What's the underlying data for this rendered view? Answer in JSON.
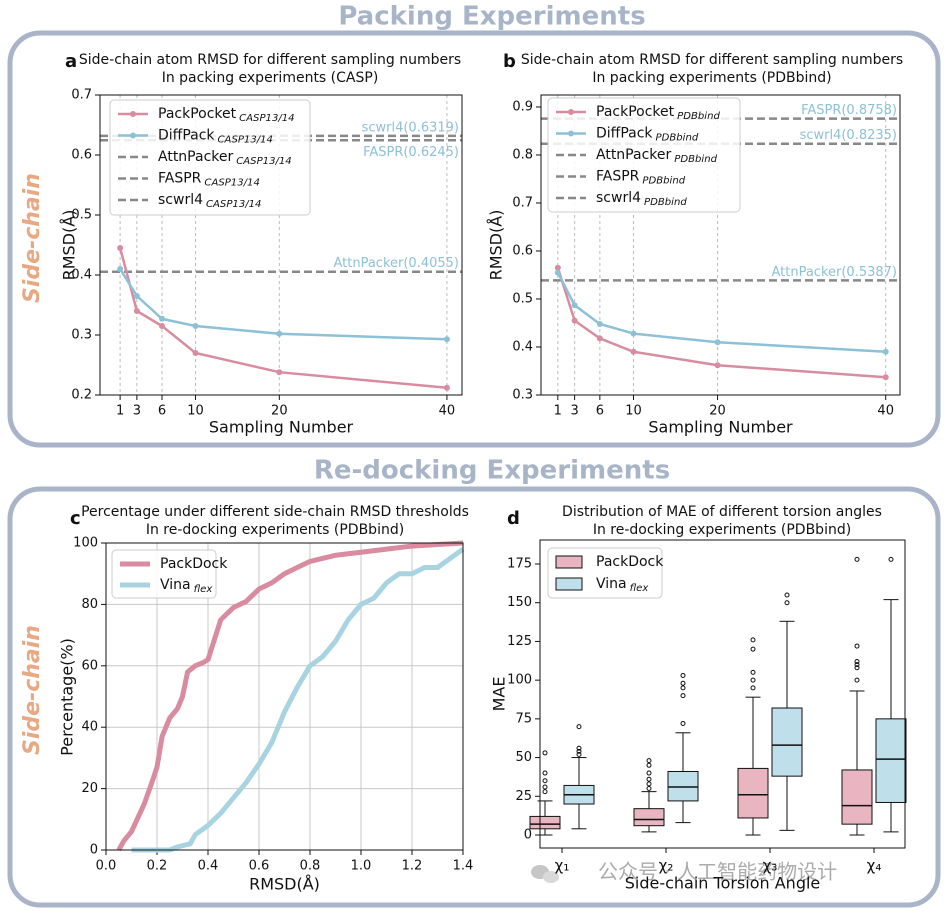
{
  "headers": [
    "Packing Experiments",
    "Re-docking Experiments"
  ],
  "side_labels": [
    "Side-chain",
    "Side-chain"
  ],
  "watermark": "公众号 · 人工智能药物设计",
  "chart_data": [
    {
      "panel": "a",
      "type": "line",
      "title": [
        "Side-chain atom RMSD for different sampling numbers",
        "In packing experiments (CASP)"
      ],
      "xlabel": "Sampling Number",
      "ylabel": "RMSD(Å)",
      "x": [
        1,
        3,
        6,
        10,
        20,
        40
      ],
      "xlim": [
        -1.4,
        41.8
      ],
      "xticks": [
        1,
        3,
        6,
        10,
        20,
        40
      ],
      "ylim": [
        0.2,
        0.7
      ],
      "yticks": [
        0.2,
        0.3,
        0.4,
        0.5,
        0.6,
        0.7
      ],
      "grid": "x",
      "series": [
        {
          "name": "PackPocket",
          "subscript": "CASP13/14",
          "color": "#d98ba0",
          "values": [
            0.445,
            0.34,
            0.315,
            0.27,
            0.238,
            0.212
          ]
        },
        {
          "name": "DiffPack",
          "subscript": "CASP13/14",
          "color": "#8cc1d6",
          "values": [
            0.41,
            0.365,
            0.327,
            0.315,
            0.302,
            0.293
          ]
        }
      ],
      "reference_lines": [
        {
          "name": "AttnPacker",
          "subscript": "CASP13/14",
          "value": 0.4055,
          "label": "AttnPacker(0.4055)",
          "color": "#888888"
        },
        {
          "name": "FASPR",
          "subscript": "CASP13/14",
          "value": 0.6245,
          "label": "FASPR(0.6245)",
          "color": "#888888"
        },
        {
          "name": "scwrl4",
          "subscript": "CASP13/14",
          "value": 0.6319,
          "label": "scwrl4(0.6319)",
          "color": "#888888"
        }
      ]
    },
    {
      "panel": "b",
      "type": "line",
      "title": [
        "Side-chain atom RMSD for different sampling numbers",
        "In packing experiments (PDBbind)"
      ],
      "xlabel": "Sampling Number",
      "ylabel": "RMSD(Å)",
      "x": [
        1,
        3,
        6,
        10,
        20,
        40
      ],
      "xlim": [
        -1.0,
        41.7
      ],
      "xticks": [
        1,
        3,
        6,
        10,
        20,
        40
      ],
      "ylim": [
        0.3,
        0.925
      ],
      "yticks": [
        0.3,
        0.4,
        0.5,
        0.6,
        0.7,
        0.8,
        0.9
      ],
      "grid": "x",
      "series": [
        {
          "name": "PackPocket",
          "subscript": "PDBbind",
          "color": "#d98ba0",
          "values": [
            0.565,
            0.455,
            0.418,
            0.39,
            0.362,
            0.337
          ]
        },
        {
          "name": "DiffPack",
          "subscript": "PDBbind",
          "color": "#8cc1d6",
          "values": [
            0.555,
            0.487,
            0.448,
            0.428,
            0.41,
            0.39
          ]
        }
      ],
      "reference_lines": [
        {
          "name": "AttnPacker",
          "subscript": "PDBbind",
          "value": 0.5387,
          "label": "AttnPacker(0.5387)",
          "color": "#888888"
        },
        {
          "name": "FASPR",
          "subscript": "PDBbind",
          "value": 0.8758,
          "label": "FASPR(0.8758)",
          "color": "#888888"
        },
        {
          "name": "scwrl4",
          "subscript": "PDBbind",
          "value": 0.8235,
          "label": "scwrl4(0.8235)",
          "color": "#888888"
        }
      ]
    },
    {
      "panel": "c",
      "type": "step",
      "title": [
        "Percentage under different side-chain RMSD thresholds",
        "In re-docking experiments (PDBbind)"
      ],
      "xlabel": "RMSD(Å)",
      "ylabel": "Percentage(%)",
      "xlim": [
        0,
        1.4
      ],
      "xticks": [
        {
          "value": 0,
          "label": "0.0"
        },
        0.2,
        0.4,
        0.6,
        0.8,
        {
          "value": 1,
          "label": "1.0"
        },
        1.2,
        1.4
      ],
      "ylim": [
        0,
        100
      ],
      "yticks": [
        0,
        20,
        40,
        60,
        80,
        100
      ],
      "grid": "both",
      "series": [
        {
          "name": "PackDock",
          "color": "#d98ba0",
          "x": [
            0.05,
            0.07,
            0.1,
            0.15,
            0.18,
            0.2,
            0.22,
            0.25,
            0.28,
            0.3,
            0.32,
            0.35,
            0.38,
            0.4,
            0.45,
            0.5,
            0.55,
            0.6,
            0.65,
            0.7,
            0.75,
            0.8,
            0.85,
            0.9,
            1.0,
            1.1,
            1.2,
            1.3,
            1.4
          ],
          "values": [
            0,
            3,
            6,
            15,
            22,
            27,
            37,
            43,
            46,
            50,
            58,
            60,
            61,
            62,
            75,
            79,
            81,
            85,
            87,
            90,
            92,
            94,
            95,
            96,
            97,
            98,
            99,
            99.5,
            100
          ]
        },
        {
          "name": "Vina",
          "subscript": "flex",
          "color": "#a8d3e0",
          "x": [
            0.1,
            0.25,
            0.28,
            0.33,
            0.35,
            0.4,
            0.45,
            0.5,
            0.55,
            0.6,
            0.65,
            0.7,
            0.75,
            0.8,
            0.85,
            0.9,
            0.95,
            1.0,
            1.05,
            1.1,
            1.15,
            1.2,
            1.25,
            1.3,
            1.35,
            1.4
          ],
          "values": [
            0,
            0,
            1,
            2,
            5,
            8,
            12,
            17,
            22,
            28,
            35,
            45,
            53,
            60,
            63,
            68,
            75,
            80,
            82,
            87,
            90,
            90,
            92,
            92,
            95,
            98
          ]
        }
      ]
    },
    {
      "panel": "d",
      "type": "box",
      "title": [
        "Distribution of MAE of different torsion angles",
        "In re-docking experiments (PDBbind)"
      ],
      "xlabel": "Side-chain Torsion Angle",
      "ylabel": "MAE",
      "categories": [
        "χ₁",
        "χ₂",
        "χ₃",
        "χ₄"
      ],
      "ylim": [
        -8.4,
        190.5
      ],
      "yticks": [
        0,
        25,
        50,
        75,
        100,
        125,
        150,
        175
      ],
      "series": [
        {
          "name": "PackDock",
          "color": "#e8b5c1",
          "boxes": [
            {
              "whislo": 0,
              "q1": 4,
              "med": 7,
              "q3": 12,
              "whishi": 22,
              "fliers": [
                28,
                31,
                35,
                40,
                53
              ]
            },
            {
              "whislo": 2,
              "q1": 6,
              "med": 10,
              "q3": 17,
              "whishi": 28,
              "fliers": [
                30,
                33,
                36,
                40,
                45,
                48
              ]
            },
            {
              "whislo": 0,
              "q1": 11,
              "med": 26,
              "q3": 43,
              "whishi": 89,
              "fliers": [
                95,
                100,
                105,
                120,
                126
              ]
            },
            {
              "whislo": 0,
              "q1": 7,
              "med": 19,
              "q3": 42,
              "whishi": 93,
              "fliers": [
                100,
                108,
                110,
                112,
                122,
                178
              ]
            }
          ]
        },
        {
          "name": "Vina",
          "subscript": "flex",
          "color": "#bfdfeb",
          "boxes": [
            {
              "whislo": 4,
              "q1": 20,
              "med": 26,
              "q3": 32,
              "whishi": 50,
              "fliers": [
                52,
                54,
                56,
                70
              ]
            },
            {
              "whislo": 8,
              "q1": 22,
              "med": 31,
              "q3": 41,
              "whishi": 66,
              "fliers": [
                72,
                90,
                95,
                98,
                103
              ]
            },
            {
              "whislo": 3,
              "q1": 38,
              "med": 58,
              "q3": 82,
              "whishi": 138,
              "fliers": [
                150,
                155
              ]
            },
            {
              "whislo": 2,
              "q1": 21,
              "med": 49,
              "q3": 75,
              "whishi": 152,
              "fliers": [
                178
              ]
            }
          ]
        }
      ]
    }
  ]
}
